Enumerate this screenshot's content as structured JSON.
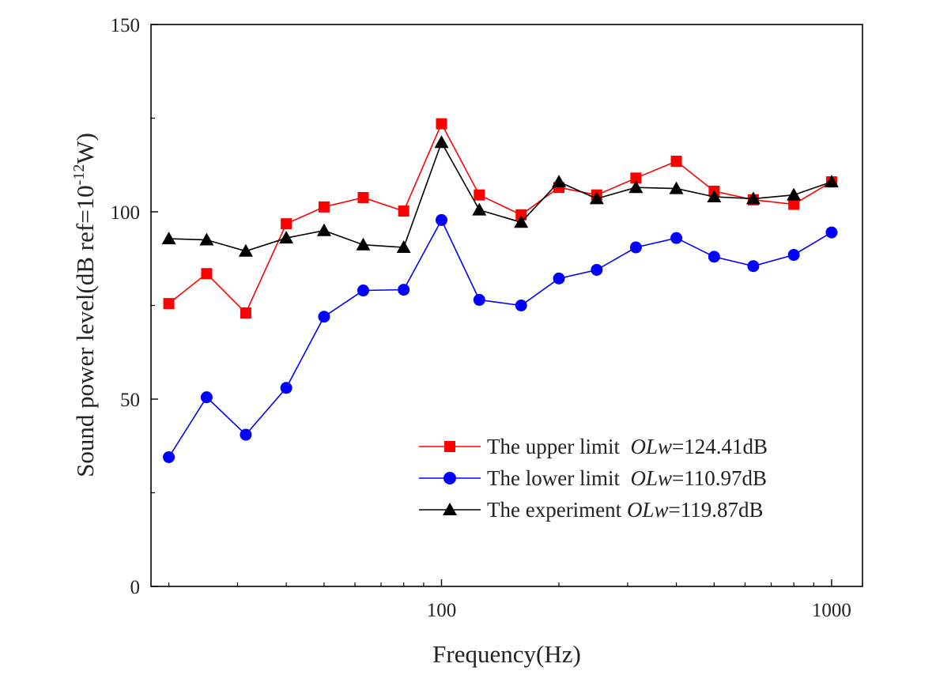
{
  "chart_data": {
    "type": "line",
    "xlabel": "Frequency(Hz)",
    "ylabel": "Sound power level(dB ref=10",
    "ylabel_sup": "-12",
    "ylabel_tail": "W)",
    "xscale": "log",
    "xlim": [
      18,
      1200
    ],
    "ylim": [
      0,
      150
    ],
    "x_ticks": [
      {
        "value": 100,
        "label": "100"
      },
      {
        "value": 1000,
        "label": "1000"
      }
    ],
    "y_ticks": [
      {
        "value": 0,
        "label": "0"
      },
      {
        "value": 50,
        "label": "50"
      },
      {
        "value": 100,
        "label": "100"
      },
      {
        "value": 150,
        "label": "150"
      }
    ],
    "x": [
      20,
      25,
      31.5,
      40,
      50,
      63,
      80,
      100,
      125,
      160,
      200,
      250,
      315,
      400,
      500,
      630,
      800,
      1000
    ],
    "series": [
      {
        "name": "The upper limit",
        "color": "#ff0000",
        "marker": "square",
        "values": [
          75.5,
          83.5,
          73,
          96.8,
          101.3,
          103.8,
          100.2,
          123.5,
          104.5,
          99.2,
          106.5,
          104.5,
          109,
          113.5,
          105.5,
          103.2,
          102,
          108
        ]
      },
      {
        "name": "The lower limit",
        "color": "#0000ff",
        "marker": "circle",
        "values": [
          34.5,
          50.5,
          40.5,
          53,
          72,
          79,
          79.2,
          97.8,
          76.5,
          75,
          82.2,
          84.5,
          90.5,
          93,
          88,
          85.5,
          88.5,
          94.5
        ]
      },
      {
        "name": "The experiment",
        "color": "#000000",
        "marker": "triangle",
        "values": [
          92.8,
          92.5,
          89.5,
          93,
          95,
          91.2,
          90.5,
          118.5,
          100.5,
          97.2,
          108,
          103.5,
          106.5,
          106.2,
          104,
          103.5,
          104.5,
          108
        ]
      }
    ],
    "legend": [
      {
        "label": "The upper limit  ",
        "metric": "OLw",
        "value": "=124.41dB"
      },
      {
        "label": "The lower limit  ",
        "metric": "OLw",
        "value": "=110.97dB"
      },
      {
        "label": "The experiment ",
        "metric": "OLw",
        "value": "=119.87dB"
      }
    ],
    "legend_placement": "bottom-right",
    "grid": false
  }
}
